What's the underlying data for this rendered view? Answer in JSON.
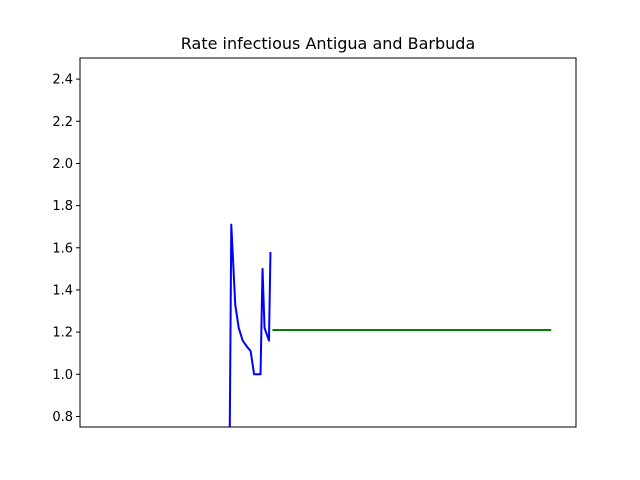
{
  "chart_data": {
    "type": "line",
    "title": "Rate infectious Antigua and Barbuda",
    "xlabel": "",
    "ylabel": "",
    "xlim": [
      0,
      100
    ],
    "ylim": [
      0.75,
      2.5
    ],
    "yticks": [
      0.8,
      1.0,
      1.2,
      1.4,
      1.6,
      1.8,
      2.0,
      2.2,
      2.4
    ],
    "xticks_visible": false,
    "grid": false,
    "series": [
      {
        "color": "#0000ff",
        "x": [
          30.2,
          30.5,
          31.3,
          32.0,
          32.8,
          33.7,
          34.4,
          35.1,
          36.2,
          36.4,
          36.8,
          37.2,
          38.1,
          38.4
        ],
        "y": [
          0.75,
          1.71,
          1.33,
          1.22,
          1.16,
          1.13,
          1.11,
          1.0,
          1.0,
          1.0,
          1.5,
          1.22,
          1.16,
          1.58
        ]
      },
      {
        "color": "#008000",
        "x": [
          38.8,
          95.0
        ],
        "y": [
          1.21,
          1.21
        ]
      }
    ]
  }
}
